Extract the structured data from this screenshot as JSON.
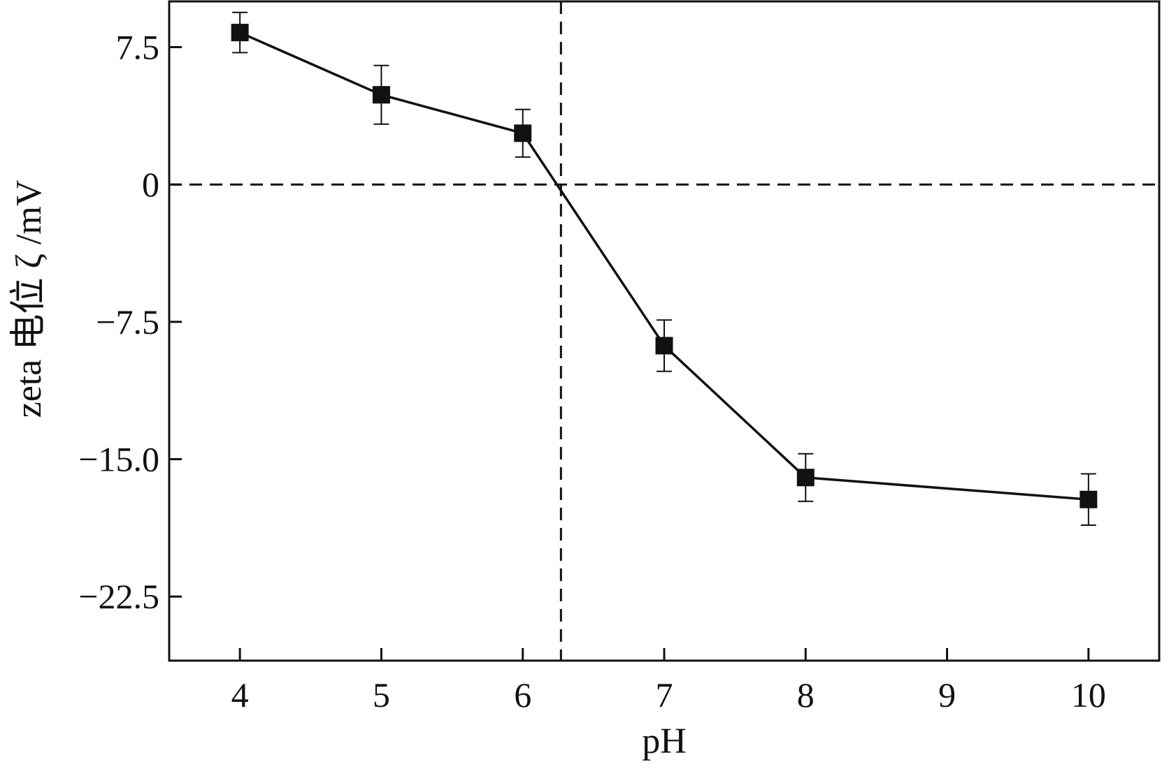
{
  "chart_data": {
    "type": "line",
    "xlabel": "pH",
    "ylabel": "zeta 电位 ζ /mV",
    "xlim": [
      3.5,
      10.5
    ],
    "ylim": [
      -26.0,
      10.0
    ],
    "x_ticks": [
      "4",
      "5",
      "6",
      "7",
      "8",
      "9",
      "10"
    ],
    "y_ticks": [
      "7.5",
      "0",
      "−7.5",
      "−15.0",
      "−22.5"
    ],
    "y_tick_values": [
      7.5,
      0,
      -7.5,
      -15.0,
      -22.5
    ],
    "x_tick_values": [
      4,
      5,
      6,
      7,
      8,
      9,
      10
    ],
    "grid": false,
    "legend": "none",
    "series": [
      {
        "x": [
          4,
          5,
          6,
          7,
          8,
          10
        ],
        "values": [
          8.3,
          4.9,
          2.8,
          -8.8,
          -16.0,
          -17.2
        ],
        "error": [
          1.1,
          1.6,
          1.3,
          1.4,
          1.3,
          1.4
        ],
        "marker": "filled-square",
        "color": "#111111"
      }
    ],
    "reference_lines": [
      {
        "orientation": "horizontal",
        "value": 0,
        "style": "dashed"
      },
      {
        "orientation": "vertical",
        "value": 6.27,
        "style": "dashed"
      }
    ]
  }
}
